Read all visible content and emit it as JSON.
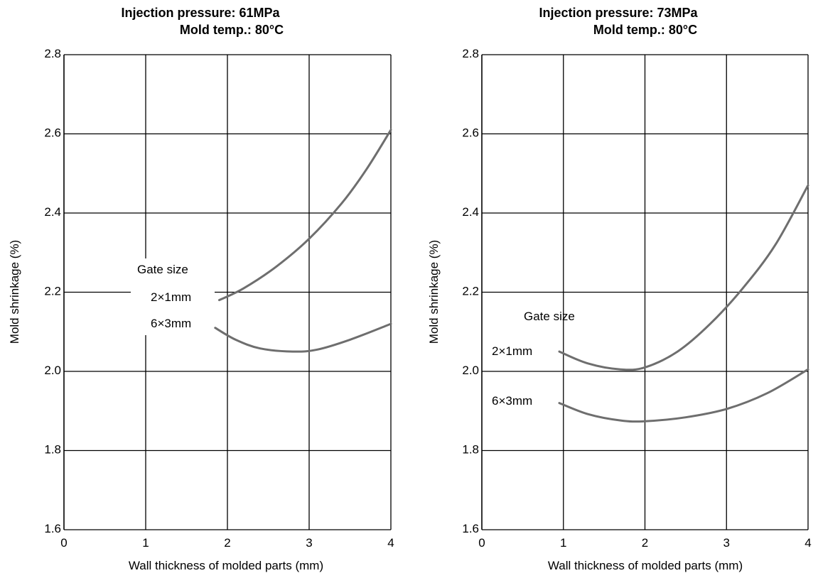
{
  "chart_data": [
    {
      "type": "line",
      "title": "Injection pressure: 61MPa",
      "subtitle": "Mold temp.: 80°C",
      "xlabel": "Wall thickness of molded parts (mm)",
      "ylabel": "Mold shrinkage (%)",
      "xlim": [
        0,
        4
      ],
      "ylim": [
        1.6,
        2.8
      ],
      "x_ticks": [
        "0",
        "1",
        "2",
        "3",
        "4"
      ],
      "y_ticks": [
        "1.6",
        "1.8",
        "2.0",
        "2.2",
        "2.4",
        "2.6",
        "2.8"
      ],
      "grid": true,
      "annotation_title": "Gate size",
      "series": [
        {
          "name": "2×1mm",
          "x": [
            1.9,
            2.2,
            2.6,
            3.0,
            3.4,
            3.7,
            4.0
          ],
          "y": [
            2.18,
            2.21,
            2.265,
            2.335,
            2.425,
            2.51,
            2.61
          ]
        },
        {
          "name": "6×3mm",
          "x": [
            1.85,
            2.1,
            2.4,
            2.8,
            3.1,
            3.5,
            4.0
          ],
          "y": [
            2.11,
            2.08,
            2.058,
            2.05,
            2.055,
            2.08,
            2.12
          ]
        }
      ]
    },
    {
      "type": "line",
      "title": "Injection pressure: 73MPa",
      "subtitle": "Mold temp.: 80°C",
      "xlabel": "Wall thickness of molded parts (mm)",
      "ylabel": "Mold shrinkage (%)",
      "xlim": [
        0,
        4
      ],
      "ylim": [
        1.6,
        2.8
      ],
      "x_ticks": [
        "0",
        "1",
        "2",
        "3",
        "4"
      ],
      "y_ticks": [
        "1.6",
        "1.8",
        "2.0",
        "2.2",
        "2.4",
        "2.6",
        "2.8"
      ],
      "grid": true,
      "annotation_title": "Gate size",
      "series": [
        {
          "name": "2×1mm",
          "x": [
            0.95,
            1.3,
            1.7,
            2.0,
            2.4,
            2.8,
            3.2,
            3.6,
            4.0
          ],
          "y": [
            2.05,
            2.02,
            2.005,
            2.01,
            2.05,
            2.12,
            2.21,
            2.32,
            2.47
          ]
        },
        {
          "name": "6×3mm",
          "x": [
            0.95,
            1.3,
            1.7,
            2.0,
            2.5,
            3.0,
            3.5,
            4.0
          ],
          "y": [
            1.92,
            1.892,
            1.876,
            1.874,
            1.884,
            1.905,
            1.945,
            2.005
          ]
        }
      ]
    }
  ]
}
